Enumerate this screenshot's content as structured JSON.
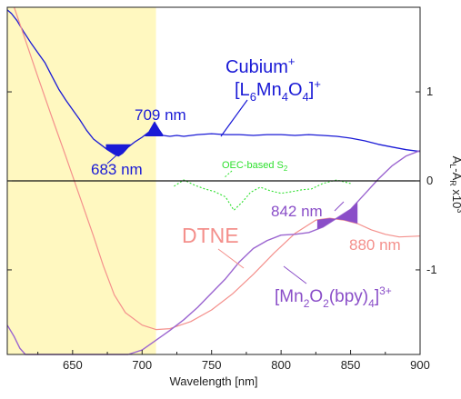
{
  "chart_data": {
    "type": "line",
    "xlabel": "Wavelength [nm]",
    "ylabel": "A_L-A_R x10^3",
    "ylabel_parts": {
      "a": "A",
      "l": "L",
      "dash": "-A",
      "r": "R",
      "x": " x10",
      "exp": "3"
    },
    "xlim": [
      603,
      900
    ],
    "ylim": [
      -1.95,
      1.95
    ],
    "x_ticks": [
      650,
      700,
      750,
      800,
      850,
      900
    ],
    "y_ticks": [
      -1,
      0,
      1
    ],
    "shaded_region": {
      "x": [
        603,
        710
      ],
      "color": "#fff8c0"
    },
    "colors": {
      "cubium": "#1a1ad6",
      "dtne": "#f4908c",
      "mn2o2": "#9b65d0",
      "oec": "#2ee02e",
      "fill_dark": "#1a1ad6",
      "fill_purple": "#8a4ec8"
    },
    "series": [
      {
        "name": "Cubium⁺ [L6Mn4O4]⁺",
        "x": [
          603,
          606,
          610,
          615,
          620,
          625,
          630,
          635,
          640,
          645,
          650,
          655,
          660,
          665,
          670,
          675,
          680,
          683,
          686,
          690,
          695,
          700,
          705,
          709,
          712,
          715,
          720,
          725,
          730,
          740,
          750,
          760,
          770,
          780,
          790,
          800,
          810,
          820,
          830,
          840,
          850,
          860,
          870,
          880,
          890,
          900
        ],
        "y": [
          1.92,
          1.88,
          1.8,
          1.67,
          1.55,
          1.44,
          1.33,
          1.18,
          1.03,
          0.91,
          0.8,
          0.69,
          0.57,
          0.47,
          0.41,
          0.35,
          0.3,
          0.28,
          0.31,
          0.38,
          0.44,
          0.49,
          0.55,
          0.66,
          0.58,
          0.51,
          0.5,
          0.51,
          0.5,
          0.52,
          0.53,
          0.52,
          0.52,
          0.51,
          0.52,
          0.52,
          0.51,
          0.52,
          0.51,
          0.5,
          0.48,
          0.45,
          0.41,
          0.38,
          0.35,
          0.33
        ]
      },
      {
        "name": "OEC-based S2",
        "x": [
          723,
          730,
          738,
          745,
          752,
          760,
          766,
          772,
          778,
          785,
          792,
          800,
          808,
          815,
          822,
          830,
          840,
          850
        ],
        "y": [
          -0.06,
          0.01,
          -0.05,
          -0.09,
          -0.12,
          -0.18,
          -0.33,
          -0.24,
          -0.13,
          -0.07,
          -0.11,
          -0.14,
          -0.12,
          -0.1,
          -0.09,
          -0.03,
          0.01,
          -0.03
        ]
      },
      {
        "name": "DTNE",
        "x": [
          608,
          615,
          625,
          635,
          645,
          655,
          665,
          672,
          680,
          688,
          700,
          710,
          720,
          735,
          750,
          765,
          780,
          795,
          810,
          825,
          835,
          845,
          855,
          865,
          875,
          885,
          900
        ],
        "y": [
          1.95,
          1.63,
          1.17,
          0.72,
          0.28,
          -0.17,
          -0.62,
          -0.95,
          -1.28,
          -1.48,
          -1.62,
          -1.67,
          -1.66,
          -1.58,
          -1.45,
          -1.27,
          -1.05,
          -0.81,
          -0.59,
          -0.44,
          -0.42,
          -0.44,
          -0.48,
          -0.55,
          -0.6,
          -0.63,
          -0.62
        ]
      },
      {
        "name": "[Mn2O2(bpy)4]3+",
        "x": [
          603,
          608,
          612,
          616,
          620,
          630,
          640,
          650,
          660,
          670,
          680,
          690,
          700,
          710,
          720,
          730,
          740,
          750,
          760,
          770,
          780,
          790,
          800,
          810,
          820,
          830,
          840,
          850,
          860,
          870,
          880,
          890,
          900
        ],
        "y": [
          -1.62,
          -1.75,
          -1.88,
          -1.95,
          -1.95,
          -1.95,
          -1.95,
          -1.95,
          -1.95,
          -1.95,
          -1.95,
          -1.95,
          -1.9,
          -1.79,
          -1.68,
          -1.56,
          -1.42,
          -1.26,
          -1.1,
          -0.91,
          -0.76,
          -0.67,
          -0.61,
          -0.6,
          -0.58,
          -0.52,
          -0.42,
          -0.32,
          -0.15,
          0.02,
          0.17,
          0.28,
          0.34
        ]
      }
    ],
    "annotations": {
      "cubium_line1": "Cubium",
      "cubium_sup": "+",
      "cubium_line2_pre": "[L",
      "cubium_line2_sub1": "6",
      "cubium_line2_mid": "Mn",
      "cubium_line2_sub2": "4",
      "cubium_line2_o": "O",
      "cubium_line2_sub3": "4",
      "cubium_line2_close": "]",
      "cubium_line2_sup": "+",
      "nm709": "709 nm",
      "nm683": "683 nm",
      "oec_main": "OEC-based S",
      "oec_sub": "2",
      "nm842": "842 nm",
      "nm880": "880 nm",
      "dtne": "DTNE",
      "mn_pre": "[Mn",
      "mn_sub1": "2",
      "mn_o": "O",
      "mn_sub2": "2",
      "mn_bpy": "(bpy)",
      "mn_sub3": "4",
      "mn_close": "]",
      "mn_sup": "3+"
    },
    "grid": false
  }
}
